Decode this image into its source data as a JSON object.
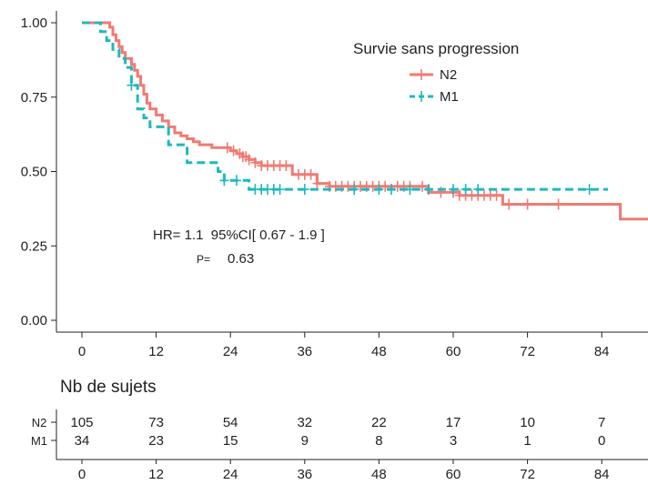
{
  "chart_data": {
    "type": "line",
    "subtype": "kaplan-meier",
    "legend": {
      "title": "Survie sans progression",
      "placement": "top-right",
      "items": [
        {
          "name": "N2",
          "color": "#F07A72",
          "dash": "solid"
        },
        {
          "name": "M1",
          "color": "#1FB8BF",
          "dash": "dashed"
        }
      ]
    },
    "xlim": [
      0,
      102
    ],
    "ylim": [
      0,
      1
    ],
    "x_ticks": [
      0,
      12,
      24,
      36,
      48,
      60,
      72,
      84
    ],
    "y_ticks": [
      0,
      0.25,
      0.5,
      0.75,
      1.0
    ],
    "y_tick_labels": [
      "0.00",
      "0.25",
      "0.50",
      "0.75",
      "1.00"
    ],
    "grid": false,
    "annotations": {
      "hr_text": "HR= 1.1  95%CI[ 0.67 - 1.9 ]",
      "p_label": "P=",
      "p_value": "0.63"
    },
    "series": [
      {
        "name": "N2",
        "color": "#F07A72",
        "dash": "solid",
        "points": [
          [
            0,
            1.0
          ],
          [
            4.5,
            1.0
          ],
          [
            4.5,
            0.985
          ],
          [
            5,
            0.985
          ],
          [
            5,
            0.96
          ],
          [
            5.5,
            0.96
          ],
          [
            5.5,
            0.94
          ],
          [
            6,
            0.94
          ],
          [
            6,
            0.92
          ],
          [
            6.5,
            0.92
          ],
          [
            6.5,
            0.9
          ],
          [
            7,
            0.9
          ],
          [
            7,
            0.88
          ],
          [
            8,
            0.88
          ],
          [
            8,
            0.86
          ],
          [
            8.5,
            0.86
          ],
          [
            8.5,
            0.84
          ],
          [
            9,
            0.84
          ],
          [
            9,
            0.82
          ],
          [
            9.5,
            0.82
          ],
          [
            9.5,
            0.79
          ],
          [
            10,
            0.79
          ],
          [
            10,
            0.76
          ],
          [
            10.5,
            0.76
          ],
          [
            10.5,
            0.73
          ],
          [
            11,
            0.73
          ],
          [
            11,
            0.71
          ],
          [
            12,
            0.71
          ],
          [
            12,
            0.69
          ],
          [
            13,
            0.69
          ],
          [
            13,
            0.67
          ],
          [
            14,
            0.67
          ],
          [
            14,
            0.65
          ],
          [
            15,
            0.65
          ],
          [
            15,
            0.63
          ],
          [
            16,
            0.63
          ],
          [
            16,
            0.62
          ],
          [
            17,
            0.62
          ],
          [
            17,
            0.61
          ],
          [
            18,
            0.61
          ],
          [
            18,
            0.6
          ],
          [
            19,
            0.6
          ],
          [
            19,
            0.59
          ],
          [
            21,
            0.59
          ],
          [
            21,
            0.58
          ],
          [
            24,
            0.58
          ],
          [
            24,
            0.57
          ],
          [
            25,
            0.57
          ],
          [
            25,
            0.56
          ],
          [
            26,
            0.56
          ],
          [
            26,
            0.55
          ],
          [
            27,
            0.55
          ],
          [
            27,
            0.54
          ],
          [
            28,
            0.54
          ],
          [
            28,
            0.53
          ],
          [
            29,
            0.53
          ],
          [
            29,
            0.52
          ],
          [
            34,
            0.52
          ],
          [
            34,
            0.49
          ],
          [
            38,
            0.49
          ],
          [
            38,
            0.46
          ],
          [
            40,
            0.46
          ],
          [
            40,
            0.45
          ],
          [
            56,
            0.45
          ],
          [
            56,
            0.43
          ],
          [
            61,
            0.43
          ],
          [
            61,
            0.42
          ],
          [
            68,
            0.42
          ],
          [
            68,
            0.39
          ],
          [
            87,
            0.39
          ],
          [
            87,
            0.34
          ],
          [
            102,
            0.34
          ]
        ],
        "censor_x": [
          23.5,
          24.5,
          25.5,
          26,
          26.5,
          27,
          28,
          29,
          30,
          31,
          32,
          33,
          35,
          36,
          37,
          38,
          40,
          41,
          42,
          43,
          44,
          45,
          46,
          47,
          48,
          49,
          51,
          52,
          53,
          55,
          58,
          60,
          61,
          62,
          63,
          64,
          65,
          66,
          67,
          69,
          72,
          77
        ]
      },
      {
        "name": "M1",
        "color": "#1FB8BF",
        "dash": "dashed",
        "points": [
          [
            0,
            1.0
          ],
          [
            3,
            1.0
          ],
          [
            3,
            0.97
          ],
          [
            4,
            0.97
          ],
          [
            4,
            0.94
          ],
          [
            5,
            0.94
          ],
          [
            5,
            0.91
          ],
          [
            6,
            0.91
          ],
          [
            6,
            0.88
          ],
          [
            7,
            0.88
          ],
          [
            7,
            0.85
          ],
          [
            8,
            0.85
          ],
          [
            8,
            0.79
          ],
          [
            9,
            0.79
          ],
          [
            9,
            0.71
          ],
          [
            10,
            0.71
          ],
          [
            10,
            0.68
          ],
          [
            11,
            0.68
          ],
          [
            11,
            0.65
          ],
          [
            14,
            0.65
          ],
          [
            14,
            0.59
          ],
          [
            17,
            0.59
          ],
          [
            17,
            0.53
          ],
          [
            22,
            0.53
          ],
          [
            22,
            0.5
          ],
          [
            23,
            0.5
          ],
          [
            23,
            0.47
          ],
          [
            27,
            0.47
          ],
          [
            27,
            0.44
          ],
          [
            85,
            0.44
          ]
        ],
        "censor_x": [
          8,
          23,
          25,
          28,
          29,
          30,
          31,
          32,
          36,
          44,
          48,
          50,
          53,
          56,
          60,
          62,
          64,
          82
        ]
      }
    ],
    "risk_table": {
      "title": "Nb de sujets",
      "rows": [
        {
          "name": "N2",
          "counts": [
            "105",
            "73",
            "54",
            "32",
            "22",
            "17",
            "10",
            "7"
          ]
        },
        {
          "name": "M1",
          "counts": [
            "34",
            "23",
            "15",
            "9",
            "8",
            "3",
            "1",
            "0"
          ]
        }
      ],
      "x_ticks": [
        0,
        12,
        24,
        36,
        48,
        60,
        72,
        84
      ]
    }
  }
}
